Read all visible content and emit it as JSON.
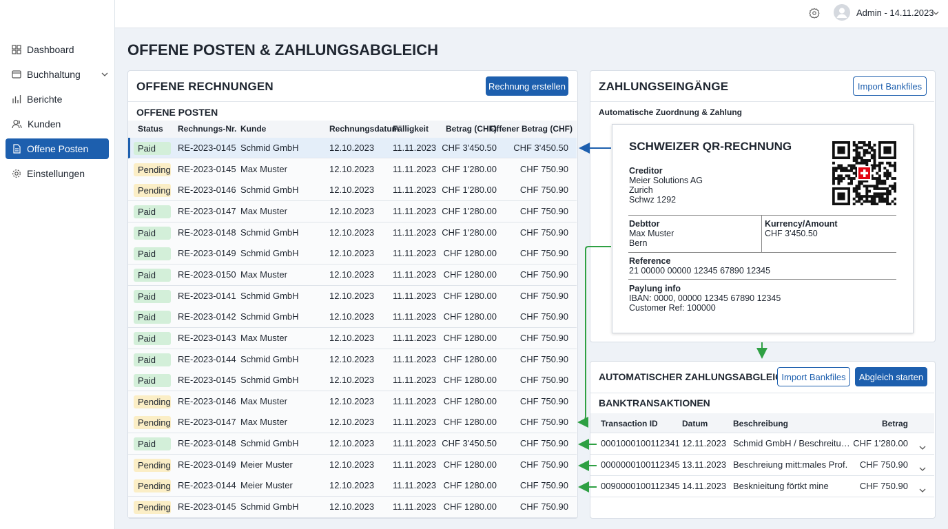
{
  "topbar": {
    "user": "Admin - 14.11.2023"
  },
  "sidebar": {
    "items": [
      "Dashboard",
      "Buchhaltung",
      "Berichte",
      "Kunden",
      "Offene Posten",
      "Einstellungen"
    ]
  },
  "page_title": "OFFENE POSTEN & ZAHLUNGSABGLEICH",
  "invoices": {
    "title": "OFFENE RECHNUNGEN",
    "button": "Rechnung erstellen",
    "subtitle": "OFFENE POSTEN",
    "columns": [
      "Status",
      "Rechnungs-Nr.",
      "Kunde",
      "Rechnungsdatum",
      "Fälligkeit",
      "Betrag (CHF)",
      "Offener Betrag (CHF)"
    ],
    "status_colors": {
      "Paid": "#d3efd9",
      "Pending": "#fbeec6"
    },
    "rows": [
      [
        "Paid",
        "RE-2023-0145",
        "Schmid GmbH",
        "12.10.2023",
        "11.11.2023",
        "CHF 3'450.50",
        "CHF 3'450.50"
      ],
      [
        "Pending",
        "RE-2023-0145",
        "Max Muster",
        "12.10.2023",
        "11.11.2023",
        "CHF 1'280.00",
        "CHF 750.90"
      ],
      [
        "Pending",
        "RE-2023-0146",
        "Schmid GmbH",
        "12.10.2023",
        "11.11.2023",
        "CHF 1'280.00",
        "CHF 750.90"
      ],
      [
        "Paid",
        "RE-2023-0147",
        "Max Muster",
        "12.10.2023",
        "11.11.2023",
        "CHF 1'280.00",
        "CHF 750.90"
      ],
      [
        "Paid",
        "RE-2023-0148",
        "Schmid GmbH",
        "12.10.2023",
        "11.11.2023",
        "CHF 1'280.00",
        "CHF 750.90"
      ],
      [
        "Paid",
        "RE-2023-0149",
        "Schmid GmbH",
        "12.10.2023",
        "11.11.2023",
        "CHF 1280.00",
        "CHF 750.90"
      ],
      [
        "Paid",
        "RE-2023-0150",
        "Max Muster",
        "12.10.2023",
        "11.11.2023",
        "CHF 1280.00",
        "CHF 750.90"
      ],
      [
        "Paid",
        "RE-2023-0141",
        "Schmid GmbH",
        "12.10.2023",
        "11.11.2023",
        "CHF 1280.00",
        "CHF 750.90"
      ],
      [
        "Paid",
        "RE-2023-0142",
        "Schmid GmbH",
        "12.10.2023",
        "11.11.2023",
        "CHF 1280.00",
        "CHF 750.90"
      ],
      [
        "Paid",
        "RE-2023-0143",
        "Max Muster",
        "12.10.2023",
        "11.11.2023",
        "CHF 1280.00",
        "CHF 750.90"
      ],
      [
        "Paid",
        "RE-2023-0144",
        "Schmid GmbH",
        "12.10.2023",
        "11.11.2023",
        "CHF 1280.00",
        "CHF 750.90"
      ],
      [
        "Paid",
        "RE-2023-0145",
        "Schmid GmbH",
        "12.10.2023",
        "11.11.2023",
        "CHF 1280.00",
        "CHF 750.90"
      ],
      [
        "Pending",
        "RE-2023-0146",
        "Max Muster",
        "12.10.2023",
        "11.11.2023",
        "CHF 1280.00",
        "CHF 750.90"
      ],
      [
        "Pending",
        "RE-2023-0147",
        "Max Muster",
        "12.10.2023",
        "11.11.2023",
        "CHF 1280.00",
        "CHF 750.90"
      ],
      [
        "Paid",
        "RE-2023-0148",
        "Schmid GmbH",
        "12.10.2023",
        "11.11.2023",
        "CHF 3'450.50",
        "CHF 750.90"
      ],
      [
        "Pending",
        "RE-2023-0149",
        "Meier Muster",
        "12.10.2023",
        "11.11.2023",
        "CHF 1280.00",
        "CHF 750.90"
      ],
      [
        "Pending",
        "RE-2023-0144",
        "Meier Muster",
        "12.10.2023",
        "11.11.2023",
        "CHF 1280.00",
        "CHF 750.90"
      ],
      [
        "Pending",
        "RE-2023-0145",
        "Schmid GmbH",
        "12.10.2023",
        "11.11.2023",
        "CHF 1280.00",
        "CHF 750.90"
      ]
    ]
  },
  "payments": {
    "title": "ZAHLUNGSEINGÄNGE",
    "button": "Import Bankfiles",
    "subtitle": "Automatische Zuordnung & Zahlung",
    "qr": {
      "title": "SCHWEIZER QR-RECHNUNG",
      "creditor_label": "Creditor",
      "creditor_lines": [
        "Meier Solutions AG",
        "Zurich",
        "Schwz 1292"
      ],
      "debtor_label": "Debttor",
      "debtor_lines": [
        "Max Muster",
        "Bern"
      ],
      "amount_label": "Kurrency/Amount",
      "amount": "CHF 3'450.50",
      "reference_label": "Reference",
      "reference": "21 00000 00000 12345 67890 12345",
      "info_label": "Paylung info",
      "info_lines": [
        "IBAN: 0000, 00000 12345 67890 12345",
        "Customer Ref: 100000"
      ]
    }
  },
  "matching": {
    "title": "AUTOMATISCHER ZAHLUNGSABGLEICH",
    "button_import": "Import Bankfiles",
    "button_start": "Abgleich starten",
    "subtitle": "BANKTRANSAKTIONEN",
    "columns": [
      "Transaction ID",
      "Datum",
      "Beschreibung",
      "Betrag"
    ],
    "rows": [
      [
        "0001000100112341",
        "12.11.2023",
        "Schmid GmbH / Beschreitungs...",
        "CHF 1'280.00"
      ],
      [
        "0000000100112345",
        "13.11.2023",
        "Beschreiung mitt:males Prof.",
        "CHF 750.90"
      ],
      [
        "0090000100112345",
        "14.11.2023",
        "Besknieitung förtkt mine",
        "CHF 750.90"
      ]
    ]
  }
}
